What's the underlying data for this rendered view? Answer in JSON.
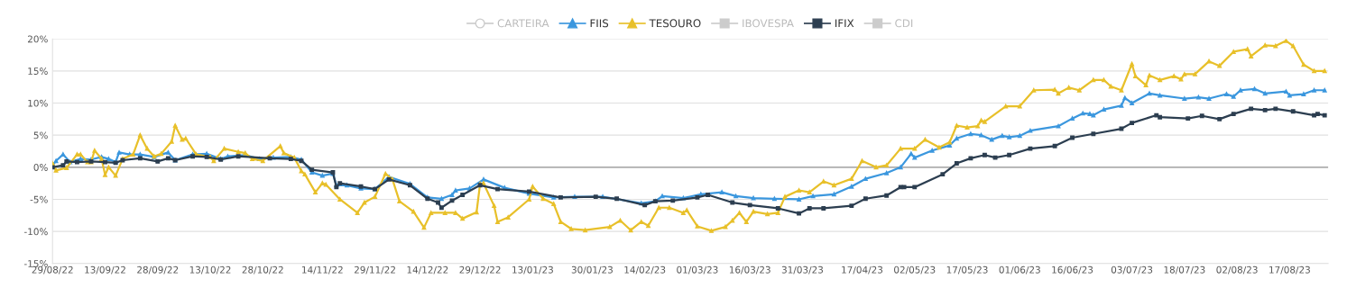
{
  "chart_data": {
    "type": "line",
    "xticks": [
      {
        "value": "2022-08-29",
        "label": "29/08/22"
      },
      {
        "value": "2022-09-13",
        "label": "13/09/22"
      },
      {
        "value": "2022-09-28",
        "label": "28/09/22"
      },
      {
        "value": "2022-10-13",
        "label": "13/10/22"
      },
      {
        "value": "2022-10-28",
        "label": "28/10/22"
      },
      {
        "value": "2022-11-14",
        "label": "14/11/22"
      },
      {
        "value": "2022-11-29",
        "label": "29/11/22"
      },
      {
        "value": "2022-12-14",
        "label": "14/12/22"
      },
      {
        "value": "2022-12-29",
        "label": "29/12/22"
      },
      {
        "value": "2023-01-13",
        "label": "13/01/23"
      },
      {
        "value": "2023-01-30",
        "label": "30/01/23"
      },
      {
        "value": "2023-02-14",
        "label": "14/02/23"
      },
      {
        "value": "2023-03-01",
        "label": "01/03/23"
      },
      {
        "value": "2023-03-16",
        "label": "16/03/23"
      },
      {
        "value": "2023-03-31",
        "label": "31/03/23"
      },
      {
        "value": "2023-04-17",
        "label": "17/04/23"
      },
      {
        "value": "2023-05-02",
        "label": "02/05/23"
      },
      {
        "value": "2023-05-17",
        "label": "17/05/23"
      },
      {
        "value": "2023-06-01",
        "label": "01/06/23"
      },
      {
        "value": "2023-06-16",
        "label": "16/06/23"
      },
      {
        "value": "2023-07-03",
        "label": "03/07/23"
      },
      {
        "value": "2023-07-18",
        "label": "18/07/23"
      },
      {
        "value": "2023-08-02",
        "label": "02/08/23"
      },
      {
        "value": "2023-08-17",
        "label": "17/08/23"
      }
    ],
    "xlim": [
      "2022-08-29",
      "2023-08-28"
    ],
    "ylim": [
      -15,
      20
    ],
    "yticks": [
      {
        "value": -15,
        "label": "-15%"
      },
      {
        "value": -10,
        "label": "-10%"
      },
      {
        "value": -5,
        "label": "-5%"
      },
      {
        "value": 0,
        "label": "0%"
      },
      {
        "value": 5,
        "label": "5%"
      },
      {
        "value": 10,
        "label": "10%"
      },
      {
        "value": 15,
        "label": "15%"
      },
      {
        "value": 20,
        "label": "20%"
      }
    ],
    "grid": "y",
    "legend": "top",
    "line_style": "solid",
    "ref_lines": [
      {
        "axis": "y",
        "value": 0,
        "color": "#999999"
      }
    ],
    "series": [
      {
        "name": "CARTEIRA",
        "color": "#cccccc",
        "marker": "circle"
      },
      {
        "name": "FIIS",
        "color": "#3b97de",
        "marker": "triangle",
        "x": [
          "2022-08-29",
          "2022-08-30",
          "2022-09-01",
          "2022-09-03",
          "2022-09-06",
          "2022-09-09",
          "2022-09-12",
          "2022-09-14",
          "2022-09-16",
          "2022-09-17",
          "2022-09-20",
          "2022-09-23",
          "2022-09-27",
          "2022-10-01",
          "2022-10-03",
          "2022-10-08",
          "2022-10-12",
          "2022-10-16",
          "2022-10-18",
          "2022-10-23",
          "2022-10-27",
          "2022-10-31",
          "2022-11-05",
          "2022-11-08",
          "2022-11-11",
          "2022-11-14",
          "2022-11-17",
          "2022-11-18",
          "2022-11-21",
          "2022-11-25",
          "2022-11-29",
          "2022-12-03",
          "2022-12-09",
          "2022-12-14",
          "2022-12-18",
          "2022-12-21",
          "2022-12-22",
          "2022-12-26",
          "2022-12-30",
          "2023-01-05",
          "2023-01-12",
          "2023-01-19",
          "2023-01-25",
          "2023-02-02",
          "2023-02-13",
          "2023-02-17",
          "2023-02-19",
          "2023-02-25",
          "2023-03-02",
          "2023-03-08",
          "2023-03-12",
          "2023-03-17",
          "2023-03-23",
          "2023-03-30",
          "2023-04-03",
          "2023-04-09",
          "2023-04-14",
          "2023-04-18",
          "2023-04-24",
          "2023-04-28",
          "2023-05-01",
          "2023-05-02",
          "2023-05-07",
          "2023-05-12",
          "2023-05-14",
          "2023-05-18",
          "2023-05-21",
          "2023-05-24",
          "2023-05-27",
          "2023-05-29",
          "2023-06-01",
          "2023-06-04",
          "2023-06-12",
          "2023-06-16",
          "2023-06-19",
          "2023-06-21",
          "2023-06-22",
          "2023-06-25",
          "2023-06-30",
          "2023-07-01",
          "2023-07-03",
          "2023-07-08",
          "2023-07-11",
          "2023-07-18",
          "2023-07-22",
          "2023-07-25",
          "2023-07-30",
          "2023-08-01",
          "2023-08-03",
          "2023-08-07",
          "2023-08-10",
          "2023-08-16",
          "2023-08-17",
          "2023-08-21",
          "2023-08-24",
          "2023-08-27"
        ],
        "values": [
          0.3,
          1.0,
          2.0,
          0.8,
          1.3,
          1.2,
          1.6,
          1.3,
          0.8,
          2.3,
          2.0,
          2.0,
          1.6,
          2.3,
          1.1,
          2.0,
          2.1,
          1.3,
          1.7,
          1.9,
          1.3,
          1.5,
          1.6,
          1.2,
          -0.8,
          -1.3,
          -1.0,
          -2.8,
          -2.8,
          -3.3,
          -3.4,
          -1.5,
          -2.6,
          -4.7,
          -4.9,
          -4.3,
          -3.6,
          -3.3,
          -1.9,
          -3.2,
          -4.1,
          -4.7,
          -4.6,
          -4.6,
          -5.6,
          -5.3,
          -4.5,
          -4.8,
          -4.2,
          -3.9,
          -4.5,
          -4.8,
          -4.9,
          -5.0,
          -4.5,
          -4.2,
          -3.0,
          -1.8,
          -0.9,
          0.0,
          2.1,
          1.5,
          2.6,
          3.4,
          4.5,
          5.2,
          5.0,
          4.3,
          4.9,
          4.7,
          4.9,
          5.7,
          6.4,
          7.6,
          8.4,
          8.3,
          8.1,
          9.0,
          9.6,
          10.8,
          10.0,
          11.5,
          11.2,
          10.7,
          10.9,
          10.7,
          11.4,
          11.0,
          12.0,
          12.2,
          11.5,
          11.8,
          11.2,
          11.4,
          12.0,
          12.0
        ]
      },
      {
        "name": "TESOURO",
        "color": "#e8c02a",
        "marker": "triangle",
        "x": [
          "2022-08-29",
          "2022-08-30",
          "2022-09-02",
          "2022-09-05",
          "2022-09-06",
          "2022-09-08",
          "2022-09-09",
          "2022-09-10",
          "2022-09-12",
          "2022-09-13",
          "2022-09-14",
          "2022-09-16",
          "2022-09-18",
          "2022-09-21",
          "2022-09-23",
          "2022-09-25",
          "2022-09-27",
          "2022-09-29",
          "2022-10-02",
          "2022-10-03",
          "2022-10-05",
          "2022-10-06",
          "2022-10-09",
          "2022-10-13",
          "2022-10-14",
          "2022-10-17",
          "2022-10-21",
          "2022-10-23",
          "2022-10-25",
          "2022-10-28",
          "2022-11-02",
          "2022-11-03",
          "2022-11-06",
          "2022-11-08",
          "2022-11-09",
          "2022-11-12",
          "2022-11-14",
          "2022-11-15",
          "2022-11-19",
          "2022-11-24",
          "2022-11-26",
          "2022-11-29",
          "2022-12-02",
          "2022-12-04",
          "2022-12-06",
          "2022-12-10",
          "2022-12-13",
          "2022-12-15",
          "2022-12-19",
          "2022-12-22",
          "2022-12-24",
          "2022-12-28",
          "2022-12-29",
          "2022-12-30",
          "2023-01-02",
          "2023-01-03",
          "2023-01-06",
          "2023-01-12",
          "2023-01-13",
          "2023-01-16",
          "2023-01-19",
          "2023-01-21",
          "2023-01-24",
          "2023-01-28",
          "2023-02-04",
          "2023-02-07",
          "2023-02-10",
          "2023-02-13",
          "2023-02-15",
          "2023-02-18",
          "2023-02-21",
          "2023-02-25",
          "2023-02-26",
          "2023-03-01",
          "2023-03-05",
          "2023-03-09",
          "2023-03-11",
          "2023-03-13",
          "2023-03-15",
          "2023-03-17",
          "2023-03-21",
          "2023-03-24",
          "2023-03-26",
          "2023-03-30",
          "2023-04-02",
          "2023-04-06",
          "2023-04-09",
          "2023-04-14",
          "2023-04-17",
          "2023-04-21",
          "2023-04-24",
          "2023-04-28",
          "2023-05-02",
          "2023-05-05",
          "2023-05-09",
          "2023-05-12",
          "2023-05-14",
          "2023-05-17",
          "2023-05-20",
          "2023-05-21",
          "2023-05-22",
          "2023-05-28",
          "2023-06-01",
          "2023-06-05",
          "2023-06-11",
          "2023-06-12",
          "2023-06-15",
          "2023-06-18",
          "2023-06-22",
          "2023-06-25",
          "2023-06-27",
          "2023-06-30",
          "2023-07-03",
          "2023-07-04",
          "2023-07-07",
          "2023-07-08",
          "2023-07-11",
          "2023-07-15",
          "2023-07-17",
          "2023-07-18",
          "2023-07-21",
          "2023-07-25",
          "2023-07-28",
          "2023-08-01",
          "2023-08-05",
          "2023-08-06",
          "2023-08-10",
          "2023-08-13",
          "2023-08-16",
          "2023-08-18",
          "2023-08-21",
          "2023-08-24",
          "2023-08-27"
        ],
        "values": [
          0.6,
          -0.5,
          -0.1,
          2.0,
          2.0,
          0.8,
          0.8,
          2.6,
          1.3,
          -1.2,
          0,
          -1.3,
          1.3,
          2.0,
          5.0,
          2.9,
          1.7,
          2.1,
          4.0,
          6.5,
          4.3,
          4.5,
          2.0,
          1.6,
          1.0,
          2.9,
          2.4,
          2.2,
          1.3,
          1.0,
          3.3,
          2.2,
          1.5,
          -0.6,
          -1.1,
          -3.9,
          -2.5,
          -2.7,
          -5.0,
          -7.1,
          -5.5,
          -4.6,
          -1.0,
          -1.9,
          -5.3,
          -6.9,
          -9.4,
          -7.1,
          -7.1,
          -7.1,
          -8.0,
          -7.0,
          -2.6,
          -2.5,
          -6.0,
          -8.5,
          -7.8,
          -5.0,
          -3.0,
          -4.9,
          -5.7,
          -8.5,
          -9.6,
          -9.8,
          -9.3,
          -8.3,
          -9.8,
          -8.5,
          -9.1,
          -6.3,
          -6.3,
          -7.1,
          -6.7,
          -9.2,
          -9.9,
          -9.3,
          -8.3,
          -7.1,
          -8.5,
          -6.9,
          -7.3,
          -7.1,
          -4.6,
          -3.6,
          -3.9,
          -2.2,
          -2.8,
          -1.8,
          1.0,
          0,
          0.3,
          2.9,
          2.9,
          4.3,
          3.1,
          3.9,
          6.5,
          6.2,
          6.4,
          7.3,
          7.1,
          9.5,
          9.5,
          12.0,
          12.1,
          11.5,
          12.4,
          12.0,
          13.6,
          13.6,
          12.6,
          12.0,
          16.1,
          14.2,
          12.8,
          14.3,
          13.6,
          14.2,
          13.7,
          14.5,
          14.5,
          16.5,
          15.8,
          18.0,
          18.4,
          17.3,
          19.0,
          18.9,
          19.7,
          18.9,
          16.0,
          15.0,
          15.0
        ]
      },
      {
        "name": "IBOVESPA",
        "color": "#cccccc",
        "marker": "square"
      },
      {
        "name": "IFIX",
        "color": "#2c3e50",
        "marker": "square",
        "x": [
          "2022-08-29",
          "2022-09-01",
          "2022-09-02",
          "2022-09-05",
          "2022-09-09",
          "2022-09-13",
          "2022-09-16",
          "2022-09-18",
          "2022-09-23",
          "2022-09-28",
          "2022-10-01",
          "2022-10-03",
          "2022-10-08",
          "2022-10-12",
          "2022-10-16",
          "2022-10-21",
          "2022-10-30",
          "2022-11-05",
          "2022-11-08",
          "2022-11-11",
          "2022-11-17",
          "2022-11-18",
          "2022-11-19",
          "2022-11-25",
          "2022-11-29",
          "2022-12-03",
          "2022-12-09",
          "2022-12-14",
          "2022-12-17",
          "2022-12-18",
          "2022-12-21",
          "2022-12-24",
          "2022-12-29",
          "2023-01-03",
          "2023-01-12",
          "2023-01-21",
          "2023-01-31",
          "2023-02-06",
          "2023-02-14",
          "2023-02-17",
          "2023-02-22",
          "2023-03-01",
          "2023-03-04",
          "2023-03-11",
          "2023-03-16",
          "2023-03-24",
          "2023-03-30",
          "2023-04-02",
          "2023-04-06",
          "2023-04-14",
          "2023-04-18",
          "2023-04-24",
          "2023-04-28",
          "2023-04-29",
          "2023-05-02",
          "2023-05-10",
          "2023-05-14",
          "2023-05-18",
          "2023-05-22",
          "2023-05-25",
          "2023-05-29",
          "2023-06-04",
          "2023-06-11",
          "2023-06-16",
          "2023-06-22",
          "2023-06-30",
          "2023-07-03",
          "2023-07-10",
          "2023-07-11",
          "2023-07-19",
          "2023-07-23",
          "2023-07-28",
          "2023-08-01",
          "2023-08-06",
          "2023-08-10",
          "2023-08-13",
          "2023-08-18",
          "2023-08-24",
          "2023-08-25",
          "2023-08-27"
        ],
        "values": [
          0,
          0.3,
          0.9,
          0.8,
          0.9,
          0.8,
          0.7,
          1.1,
          1.4,
          0.9,
          1.4,
          1.1,
          1.7,
          1.6,
          1.2,
          1.7,
          1.4,
          1.3,
          1.0,
          -0.4,
          -0.8,
          -3.1,
          -2.5,
          -3.0,
          -3.4,
          -1.9,
          -2.8,
          -4.9,
          -5.5,
          -6.3,
          -5.2,
          -4.3,
          -2.8,
          -3.4,
          -3.8,
          -4.7,
          -4.6,
          -4.9,
          -5.9,
          -5.3,
          -5.2,
          -4.7,
          -4.3,
          -5.5,
          -5.9,
          -6.4,
          -7.2,
          -6.4,
          -6.4,
          -6.0,
          -4.9,
          -4.4,
          -3.1,
          -3.1,
          -3.1,
          -1.1,
          0.6,
          1.4,
          1.9,
          1.5,
          1.9,
          2.9,
          3.3,
          4.6,
          5.2,
          6.0,
          6.9,
          8.1,
          7.8,
          7.6,
          8.0,
          7.5,
          8.3,
          9.1,
          8.9,
          9.1,
          8.7,
          8.1,
          8.3,
          8.1
        ]
      },
      {
        "name": "CDI",
        "color": "#cccccc",
        "marker": "square"
      }
    ]
  }
}
